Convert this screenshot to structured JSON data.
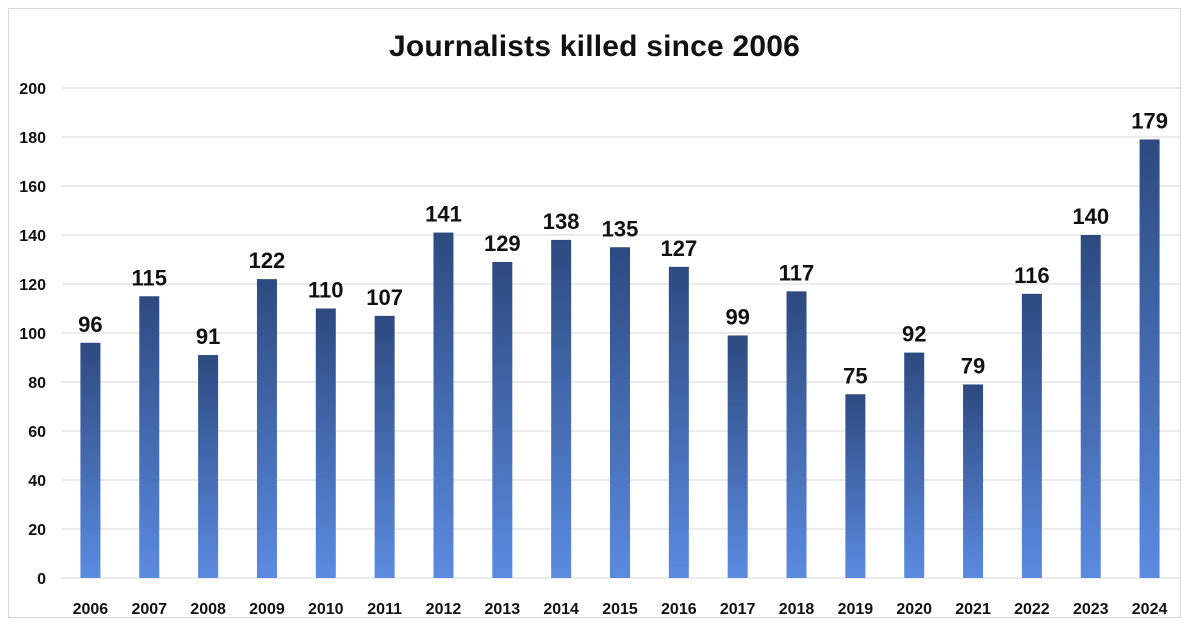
{
  "chart_data": {
    "type": "bar",
    "title": "Journalists killed since 2006",
    "xlabel": "",
    "ylabel": "",
    "categories": [
      "2006",
      "2007",
      "2008",
      "2009",
      "2010",
      "2011",
      "2012",
      "2013",
      "2014",
      "2015",
      "2016",
      "2017",
      "2018",
      "2019",
      "2020",
      "2021",
      "2022",
      "2023",
      "2024"
    ],
    "values": [
      96,
      115,
      91,
      122,
      110,
      107,
      141,
      129,
      138,
      135,
      127,
      99,
      117,
      75,
      92,
      79,
      116,
      140,
      179
    ],
    "ylim": [
      0,
      200
    ],
    "yticks": [
      0,
      20,
      40,
      60,
      80,
      100,
      120,
      140,
      160,
      180,
      200
    ],
    "grid": true,
    "legend": "none",
    "bar_color_top": "#2d4a80",
    "bar_color_bottom": "#5b8be0"
  }
}
